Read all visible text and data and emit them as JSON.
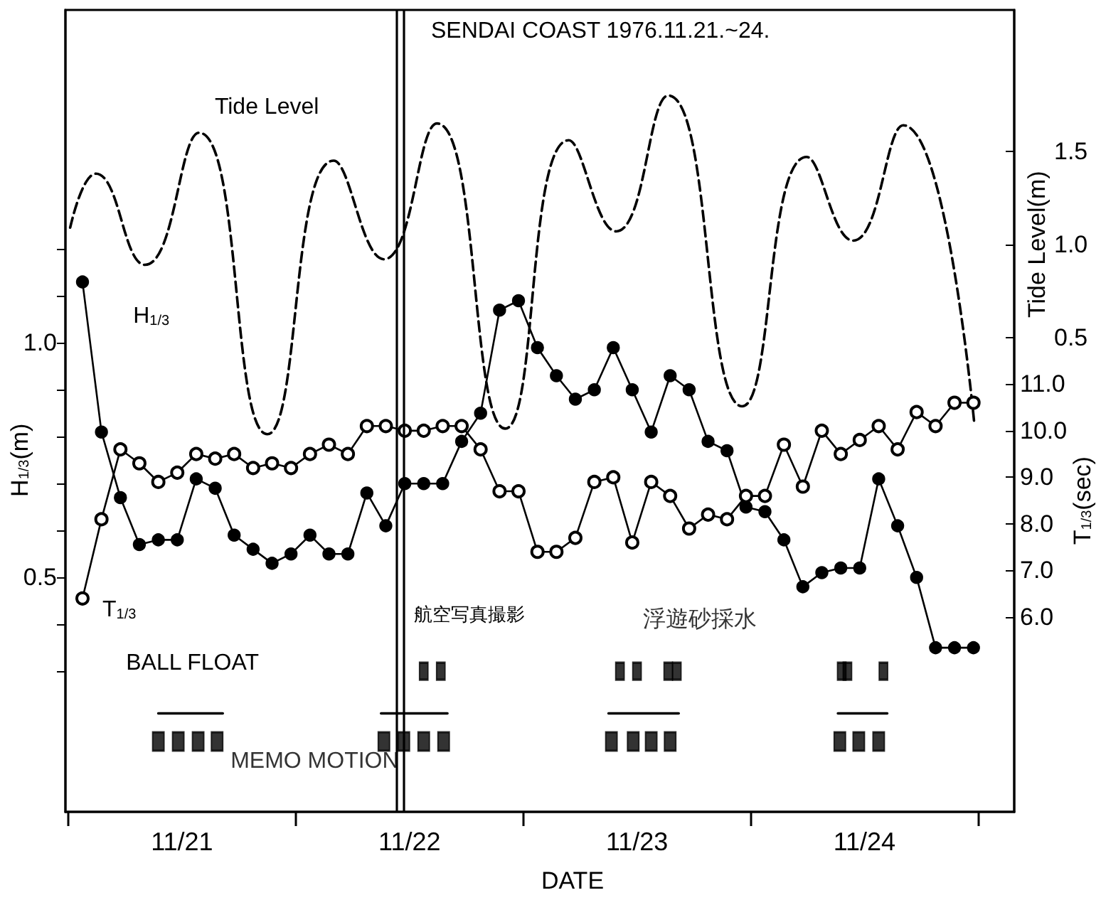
{
  "chart_data": {
    "type": "line",
    "title": "SENDAI COAST 1976.11.21.~24.",
    "xlabel": "DATE",
    "ylabel": "H$_{1/3}$(m)",
    "y2label": "Tide Level(m)",
    "y3label": "T$_{1/3}$(sec)",
    "xlim": [
      "1976-11-20T23:42",
      "1976-11-25T03:48"
    ],
    "xticks": [
      {
        "value": "1976-11-21T00:00",
        "label": null
      },
      {
        "value": "1976-11-21T12:00",
        "label": "11/21"
      },
      {
        "value": "1976-11-22T00:00",
        "label": null
      },
      {
        "value": "1976-11-22T12:00",
        "label": "11/22"
      },
      {
        "value": "1976-11-23T00:00",
        "label": null
      },
      {
        "value": "1976-11-23T12:00",
        "label": "11/23"
      },
      {
        "value": "1976-11-24T00:00",
        "label": null
      },
      {
        "value": "1976-11-24T12:00",
        "label": "11/24"
      },
      {
        "value": "1976-11-25T00:00",
        "label": null
      }
    ],
    "ylim": [
      0,
      1.71
    ],
    "yticks": [
      {
        "value": 0.3,
        "label": null
      },
      {
        "value": 0.4,
        "label": null
      },
      0.5,
      {
        "value": 0.6,
        "label": null
      },
      {
        "value": 0.7,
        "label": null
      },
      {
        "value": 0.8,
        "label": null
      },
      {
        "value": 0.9,
        "label": null
      },
      {
        "value": 1,
        "label": "1.0"
      },
      {
        "value": 1.1,
        "label": null
      },
      {
        "value": 1.2,
        "label": null
      }
    ],
    "y2lim": [
      -2.05,
      2.26
    ],
    "y2ticks": [
      0.5,
      {
        "value": 1,
        "label": "1.0"
      },
      1.5
    ],
    "y3lim": [
      1.82,
      19.03
    ],
    "y3ticks": [
      {
        "value": 6,
        "label": "6.0"
      },
      {
        "value": 7,
        "label": "7.0"
      },
      {
        "value": 8,
        "label": "8.0"
      },
      {
        "value": 9,
        "label": "9.0"
      },
      {
        "value": 10,
        "label": "10.0"
      },
      {
        "value": 11,
        "label": "11.0"
      }
    ],
    "grid": false,
    "series": [
      {
        "name": "Tide Level",
        "color": "#000000",
        "axis": "y2",
        "marker": "none",
        "line_style": "dashed",
        "x": [
          "1976-11-21T00:12",
          "1976-11-21T02:54",
          "1976-11-21T08:06",
          "1976-11-21T13:48",
          "1976-11-21T21:00",
          "1976-11-22T04:00",
          "1976-11-22T09:18",
          "1976-11-22T14:54",
          "1976-11-22T22:06",
          "1976-11-23T04:48",
          "1976-11-23T09:48",
          "1976-11-23T15:18",
          "1976-11-23T23:06",
          "1976-11-24T05:54",
          "1976-11-24T10:48",
          "1976-11-24T16:06",
          "1976-11-24T23:36"
        ],
        "values": [
          1.09,
          1.38,
          0.89,
          1.6,
          -0.02,
          1.45,
          0.92,
          1.65,
          0.01,
          1.56,
          1.07,
          1.8,
          0.13,
          1.47,
          1.02,
          1.64,
          0.03
        ]
      },
      {
        "name": "H$_{1/3}$",
        "color": "#000000",
        "axis": "y",
        "marker": "circle",
        "line_style": "solid",
        "x": [
          "1976-11-21T01:30",
          "1976-11-21T03:30",
          "1976-11-21T05:30",
          "1976-11-21T07:30",
          "1976-11-21T09:30",
          "1976-11-21T11:30",
          "1976-11-21T13:30",
          "1976-11-21T15:30",
          "1976-11-21T17:30",
          "1976-11-21T19:30",
          "1976-11-21T21:30",
          "1976-11-21T23:30",
          "1976-11-22T01:30",
          "1976-11-22T03:30",
          "1976-11-22T05:30",
          "1976-11-22T07:30",
          "1976-11-22T09:30",
          "1976-11-22T11:30",
          "1976-11-22T13:30",
          "1976-11-22T15:30",
          "1976-11-22T17:30",
          "1976-11-22T19:30",
          "1976-11-22T21:30",
          "1976-11-22T23:30",
          "1976-11-23T01:30",
          "1976-11-23T03:30",
          "1976-11-23T05:30",
          "1976-11-23T07:30",
          "1976-11-23T09:30",
          "1976-11-23T11:30",
          "1976-11-23T13:30",
          "1976-11-23T15:30",
          "1976-11-23T17:30",
          "1976-11-23T19:30",
          "1976-11-23T21:30",
          "1976-11-23T23:30",
          "1976-11-24T01:30",
          "1976-11-24T03:30",
          "1976-11-24T05:30",
          "1976-11-24T07:30",
          "1976-11-24T09:30",
          "1976-11-24T11:30",
          "1976-11-24T13:30",
          "1976-11-24T15:30",
          "1976-11-24T17:30",
          "1976-11-24T19:30",
          "1976-11-24T21:30",
          "1976-11-24T23:30"
        ],
        "values": [
          1.13,
          0.81,
          0.67,
          0.57,
          0.58,
          0.58,
          0.71,
          0.69,
          0.59,
          0.56,
          0.53,
          0.55,
          0.59,
          0.55,
          0.55,
          0.68,
          0.61,
          0.7,
          0.7,
          0.7,
          0.79,
          0.85,
          1.07,
          1.09,
          0.99,
          0.93,
          0.88,
          0.9,
          0.99,
          0.9,
          0.81,
          0.93,
          0.9,
          0.79,
          0.77,
          0.65,
          0.64,
          0.58,
          0.48,
          0.51,
          0.52,
          0.52,
          0.71,
          0.61,
          0.5,
          0.35,
          0.35,
          0.35
        ]
      },
      {
        "name": "T$_{1/3}$",
        "color": "#000000",
        "axis": "y3",
        "marker": "open_circle",
        "line_style": "solid",
        "x": [
          "1976-11-21T01:30",
          "1976-11-21T03:30",
          "1976-11-21T05:30",
          "1976-11-21T07:30",
          "1976-11-21T09:30",
          "1976-11-21T11:30",
          "1976-11-21T13:30",
          "1976-11-21T15:30",
          "1976-11-21T17:30",
          "1976-11-21T19:30",
          "1976-11-21T21:30",
          "1976-11-21T23:30",
          "1976-11-22T01:30",
          "1976-11-22T03:30",
          "1976-11-22T05:30",
          "1976-11-22T07:30",
          "1976-11-22T09:30",
          "1976-11-22T11:30",
          "1976-11-22T13:30",
          "1976-11-22T15:30",
          "1976-11-22T17:30",
          "1976-11-22T19:30",
          "1976-11-22T21:30",
          "1976-11-22T23:30",
          "1976-11-23T01:30",
          "1976-11-23T03:30",
          "1976-11-23T05:30",
          "1976-11-23T07:30",
          "1976-11-23T09:30",
          "1976-11-23T11:30",
          "1976-11-23T13:30",
          "1976-11-23T15:30",
          "1976-11-23T17:30",
          "1976-11-23T19:30",
          "1976-11-23T21:30",
          "1976-11-23T23:30",
          "1976-11-24T01:30",
          "1976-11-24T03:30",
          "1976-11-24T05:30",
          "1976-11-24T07:30",
          "1976-11-24T09:30",
          "1976-11-24T11:30",
          "1976-11-24T13:30",
          "1976-11-24T15:30",
          "1976-11-24T17:30",
          "1976-11-24T19:30",
          "1976-11-24T21:30",
          "1976-11-24T23:30"
        ],
        "values": [
          6.4,
          8.1,
          9.6,
          9.3,
          8.9,
          9.1,
          9.5,
          9.4,
          9.5,
          9.2,
          9.3,
          9.2,
          9.5,
          9.7,
          9.5,
          10.1,
          10.1,
          10.0,
          10.0,
          10.1,
          10.1,
          9.6,
          8.7,
          8.7,
          7.4,
          7.4,
          7.7,
          8.9,
          9.0,
          7.6,
          8.9,
          8.6,
          7.9,
          8.2,
          8.1,
          8.6,
          8.6,
          9.7,
          8.8,
          10.0,
          9.5,
          9.8,
          10.1,
          9.6,
          10.4,
          10.1,
          10.6,
          10.6
        ]
      },
      {
        "name": "BALL FLOAT",
        "type": "line",
        "color": "#000000",
        "axis": "y",
        "marker": "none",
        "line_style": "solid",
        "x": [
          "1976-11-21T09:30",
          "1976-11-21T16:18",
          "1976-11-22T00:00",
          "1976-11-22T09:00",
          "1976-11-22T16:00",
          "1976-11-23T00:00",
          "1976-11-23T09:00",
          "1976-11-23T16:24",
          "1976-11-24T00:00",
          "1976-11-24T09:12",
          "1976-11-24T14:24"
        ],
        "values": [
          0.21,
          0.21,
          null,
          0.21,
          0.21,
          null,
          0.21,
          0.21,
          null,
          0.21,
          0.21
        ]
      },
      {
        "name": "MEMO MOTION",
        "type": "scatter",
        "color": "#000000",
        "axis": "y",
        "marker": "square",
        "x": [
          "1976-11-21T09:30",
          "1976-11-21T11:36",
          "1976-11-21T13:42",
          "1976-11-21T15:42",
          "1976-11-22T09:18",
          "1976-11-22T11:24",
          "1976-11-22T13:30",
          "1976-11-22T15:36",
          "1976-11-23T09:18",
          "1976-11-23T11:36",
          "1976-11-23T13:30",
          "1976-11-23T15:30",
          "1976-11-24T09:24",
          "1976-11-24T11:24",
          "1976-11-24T13:30"
        ],
        "values": [
          0.15,
          0.15,
          0.15,
          0.15,
          0.15,
          0.15,
          0.15,
          0.15,
          0.15,
          0.15,
          0.15,
          0.15,
          0.15,
          0.15,
          0.15
        ]
      },
      {
        "name": "浮遊砂採水",
        "type": "scatter",
        "color": "#000000",
        "axis": "y",
        "marker": "square",
        "x": [
          "1976-11-22T13:30",
          "1976-11-22T15:18",
          "1976-11-23T10:12",
          "1976-11-23T12:00",
          "1976-11-23T15:18",
          "1976-11-23T16:12",
          "1976-11-24T09:36",
          "1976-11-24T10:12",
          "1976-11-24T14:00"
        ],
        "values": [
          0.3,
          0.3,
          0.3,
          0.3,
          0.3,
          0.3,
          0.3,
          0.3,
          0.3
        ]
      }
    ],
    "ref_lines": [
      {
        "axis": "x",
        "value": "1976-11-22T10:42",
        "label": "航空写真撮影"
      },
      {
        "axis": "x",
        "value": "1976-11-22T11:24"
      }
    ]
  }
}
